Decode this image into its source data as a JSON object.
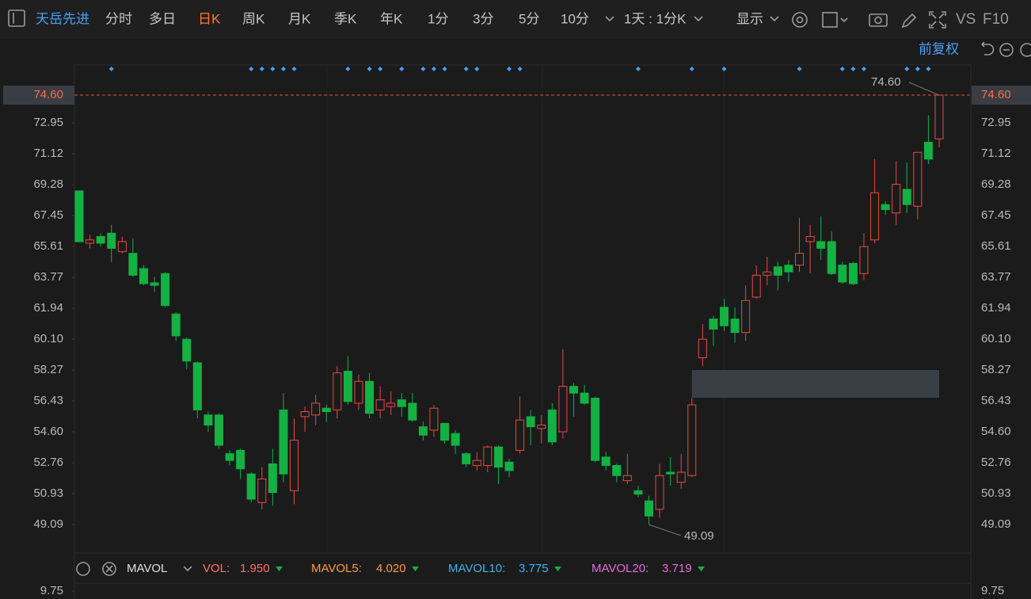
{
  "toolbar": {
    "stock": "天岳先进",
    "tabs": [
      "分时",
      "多日",
      "日K",
      "周K",
      "月K",
      "季K",
      "年K",
      "1分",
      "3分",
      "5分",
      "10分"
    ],
    "active_tab": 2,
    "interval": "1天 : 1分K",
    "display": "显示",
    "vs": "VS",
    "f10": "F10",
    "adjust": "前复权"
  },
  "chart_data": {
    "type": "candlestick",
    "up_color": "#e8493f",
    "down_color": "#14b143",
    "open": [
      68.91,
      65.8,
      66.2,
      66.4,
      65.3,
      65.2,
      64.3,
      63.45,
      64.0,
      61.6,
      60.1,
      58.7,
      55.6,
      55.6,
      53.3,
      53.5,
      52.1,
      50.4,
      52.7,
      55.9,
      51.1,
      55.5,
      55.6,
      56.0,
      55.9,
      58.2,
      56.3,
      57.6,
      55.9,
      56.1,
      56.5,
      56.3,
      54.9,
      54.7,
      55.1,
      54.5,
      53.3,
      52.6,
      52.6,
      53.7,
      52.8,
      53.5,
      55.5,
      54.8,
      55.9,
      54.6,
      57.3,
      56.9,
      56.6,
      53.1,
      52.6,
      51.7,
      51.1,
      50.5,
      50.0,
      52.2,
      51.6,
      52.0,
      59.0,
      61.3,
      62.0,
      61.3,
      60.5,
      62.6,
      63.9,
      64.4,
      64.5,
      64.5,
      65.9,
      65.9,
      65.9,
      64.5,
      64.6,
      64.0,
      66.0,
      68.1,
      67.6,
      69.0,
      68.0,
      71.8,
      72.0
    ],
    "high": [
      68.91,
      66.3,
      66.4,
      66.9,
      66.2,
      66.1,
      64.5,
      63.8,
      64.1,
      61.7,
      60.2,
      58.8,
      55.8,
      55.7,
      53.5,
      53.6,
      52.2,
      52.5,
      53.6,
      56.9,
      55.4,
      56.1,
      56.8,
      56.2,
      58.5,
      59.1,
      58.0,
      58.1,
      57.3,
      57.0,
      56.9,
      56.9,
      55.2,
      56.2,
      55.1,
      54.7,
      53.4,
      53.4,
      53.8,
      53.8,
      53.0,
      56.7,
      55.9,
      55.6,
      56.3,
      59.5,
      57.5,
      57.4,
      56.7,
      53.4,
      52.7,
      53.3,
      51.4,
      50.8,
      52.7,
      53.1,
      53.3,
      56.6,
      61.0,
      61.5,
      62.5,
      62.0,
      63.3,
      64.5,
      65.0,
      64.7,
      64.8,
      67.3,
      66.9,
      67.4,
      66.5,
      64.7,
      64.7,
      66.4,
      70.8,
      68.3,
      70.7,
      70.6,
      71.2,
      73.4,
      74.6
    ],
    "low": [
      65.89,
      65.5,
      65.6,
      64.7,
      65.2,
      63.8,
      63.3,
      62.9,
      62.0,
      60.0,
      58.3,
      55.4,
      54.6,
      53.6,
      52.6,
      51.8,
      50.4,
      50.0,
      50.2,
      51.6,
      50.3,
      54.6,
      55.0,
      55.2,
      55.4,
      56.2,
      55.9,
      55.4,
      55.4,
      55.6,
      55.5,
      55.2,
      54.1,
      54.3,
      53.9,
      53.3,
      52.5,
      52.3,
      52.2,
      51.5,
      51.9,
      53.3,
      53.8,
      53.9,
      53.8,
      54.2,
      55.5,
      56.2,
      52.8,
      52.3,
      51.6,
      51.5,
      50.7,
      49.09,
      49.5,
      51.4,
      51.2,
      51.9,
      58.5,
      59.7,
      60.6,
      59.9,
      60.0,
      62.5,
      63.3,
      63.0,
      63.5,
      64.1,
      64.0,
      64.8,
      63.9,
      63.4,
      63.3,
      63.6,
      65.8,
      67.5,
      66.9,
      67.6,
      67.2,
      70.5,
      71.5
    ],
    "close": [
      65.89,
      66.0,
      65.8,
      65.5,
      65.9,
      63.9,
      63.4,
      63.3,
      62.1,
      60.3,
      58.8,
      55.9,
      55.0,
      53.8,
      52.9,
      52.4,
      50.6,
      51.8,
      51.0,
      52.1,
      54.1,
      55.8,
      56.3,
      55.8,
      58.1,
      56.4,
      57.6,
      55.7,
      56.5,
      56.3,
      56.1,
      55.3,
      54.4,
      56.0,
      54.1,
      53.8,
      52.7,
      52.9,
      53.7,
      52.5,
      52.3,
      55.3,
      54.9,
      55.0,
      54.0,
      57.3,
      56.9,
      56.3,
      52.9,
      52.6,
      52.0,
      52.0,
      50.9,
      49.6,
      52.0,
      52.1,
      52.2,
      56.2,
      60.1,
      60.7,
      60.9,
      60.5,
      62.4,
      63.9,
      64.1,
      63.9,
      64.1,
      65.2,
      66.2,
      65.5,
      64.0,
      63.5,
      63.4,
      65.6,
      68.8,
      67.8,
      69.3,
      68.1,
      71.2,
      70.8,
      74.6
    ],
    "markers": [
      3,
      16,
      17,
      18,
      19,
      20,
      25,
      27,
      28,
      30,
      32,
      33,
      34,
      36,
      37,
      40,
      41,
      52,
      57,
      60,
      67,
      71,
      72,
      73,
      77,
      78,
      79
    ],
    "gap_zone": [
      56.62,
      58.27
    ],
    "ylim": [
      47.4,
      76.39
    ],
    "yticks": [
      {
        "value": 74.6,
        "label": "74.60"
      },
      72.95,
      71.12,
      69.28,
      67.45,
      65.61,
      63.77,
      61.94,
      {
        "value": 60.1,
        "label": "60.10"
      },
      58.27,
      56.43,
      {
        "value": 54.6,
        "label": "54.60"
      },
      52.76,
      50.93,
      49.09
    ],
    "last_price": {
      "value": 74.6,
      "label": "74.60"
    },
    "max_label": {
      "value": 74.6,
      "label": "74.60"
    },
    "min_label": {
      "value": 49.09,
      "label": "49.09"
    },
    "volume": {
      "indicator": "MAVOL",
      "legend": [
        {
          "name": "VOL:",
          "color": "#ff6f6a",
          "value": {
            "value": 1.95,
            "label": "1.950"
          }
        },
        {
          "name": "MAVOL5:",
          "color": "#ff9a3c",
          "value": {
            "value": 4.02,
            "label": "4.020"
          }
        },
        {
          "name": "MAVOL10:",
          "color": "#3fb2f0",
          "value": {
            "value": 3.775,
            "label": "3.775"
          }
        },
        {
          "name": "MAVOL20:",
          "color": "#e96ad8",
          "value": {
            "value": 3.719,
            "label": "3.719"
          }
        }
      ],
      "yticks": [
        9.75
      ]
    }
  }
}
